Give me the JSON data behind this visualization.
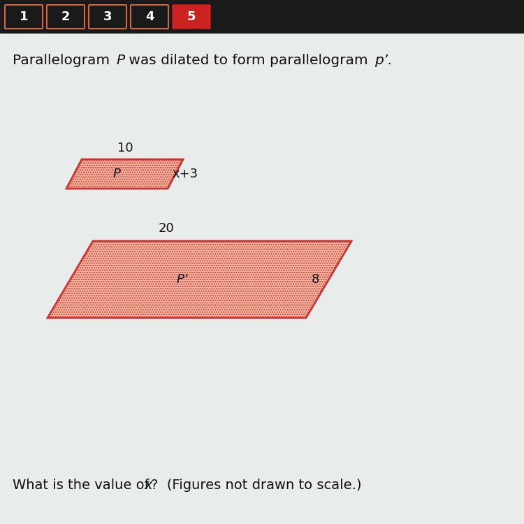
{
  "bg_color": "#c8cfc8",
  "header_bg": "#1a1a1a",
  "tab_labels": [
    "1",
    "2",
    "3",
    "4",
    "5"
  ],
  "tab_active_idx": 4,
  "tab_active_color": "#cc2222",
  "tab_inactive_border": "#cc6644",
  "tab_text_color": "#ffffff",
  "content_bg": "#e8eceb",
  "font_color": "#111111",
  "title_fontsize": 14.5,
  "label_fontsize": 13,
  "question_fontsize": 14,
  "small_para": {
    "label": "P",
    "top_label": "10",
    "right_label": "x+3",
    "fill_color": "#f2b8a0",
    "edge_color": "#cc3333",
    "linewidth": 2.0
  },
  "large_para": {
    "label": "P’",
    "top_label": "20",
    "right_label": "8",
    "fill_color": "#f2b8a0",
    "edge_color": "#cc3333",
    "linewidth": 2.0
  }
}
